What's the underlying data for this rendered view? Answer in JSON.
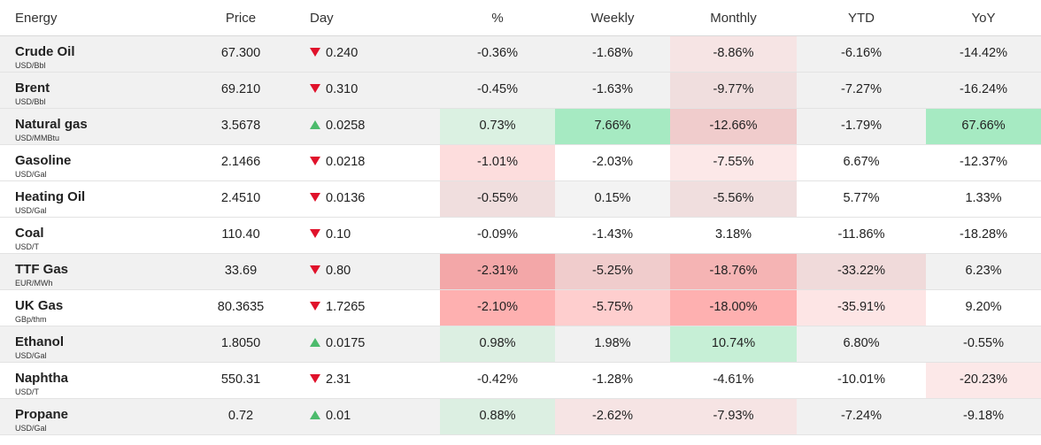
{
  "headers": {
    "name": "Energy",
    "price": "Price",
    "day": "Day",
    "pct": "%",
    "weekly": "Weekly",
    "monthly": "Monthly",
    "ytd": "YTD",
    "yoy": "YoY"
  },
  "colors": {
    "up_arrow": "#4cbb6c",
    "down_arrow": "#e0122b"
  },
  "rows": [
    {
      "name": "Crude Oil",
      "unit": "USD/Bbl",
      "price": "67.300",
      "dir": "down",
      "day": "0.240",
      "pct": "-0.36%",
      "weekly": "-1.68%",
      "monthly": "-8.86%",
      "ytd": "-6.16%",
      "yoy": "-14.42%"
    },
    {
      "name": "Brent",
      "unit": "USD/Bbl",
      "price": "69.210",
      "dir": "down",
      "day": "0.310",
      "pct": "-0.45%",
      "weekly": "-1.63%",
      "monthly": "-9.77%",
      "ytd": "-7.27%",
      "yoy": "-16.24%"
    },
    {
      "name": "Natural gas",
      "unit": "USD/MMBtu",
      "price": "3.5678",
      "dir": "up",
      "day": "0.0258",
      "pct": "0.73%",
      "weekly": "7.66%",
      "monthly": "-12.66%",
      "ytd": "-1.79%",
      "yoy": "67.66%"
    },
    {
      "name": "Gasoline",
      "unit": "USD/Gal",
      "price": "2.1466",
      "dir": "down",
      "day": "0.0218",
      "pct": "-1.01%",
      "weekly": "-2.03%",
      "monthly": "-7.55%",
      "ytd": "6.67%",
      "yoy": "-12.37%"
    },
    {
      "name": "Heating Oil",
      "unit": "USD/Gal",
      "price": "2.4510",
      "dir": "down",
      "day": "0.0136",
      "pct": "-0.55%",
      "weekly": "0.15%",
      "monthly": "-5.56%",
      "ytd": "5.77%",
      "yoy": "1.33%"
    },
    {
      "name": "Coal",
      "unit": "USD/T",
      "price": "110.40",
      "dir": "down",
      "day": "0.10",
      "pct": "-0.09%",
      "weekly": "-1.43%",
      "monthly": "3.18%",
      "ytd": "-11.86%",
      "yoy": "-18.28%"
    },
    {
      "name": "TTF Gas",
      "unit": "EUR/MWh",
      "price": "33.69",
      "dir": "down",
      "day": "0.80",
      "pct": "-2.31%",
      "weekly": "-5.25%",
      "monthly": "-18.76%",
      "ytd": "-33.22%",
      "yoy": "6.23%"
    },
    {
      "name": "UK Gas",
      "unit": "GBp/thm",
      "price": "80.3635",
      "dir": "down",
      "day": "1.7265",
      "pct": "-2.10%",
      "weekly": "-5.75%",
      "monthly": "-18.00%",
      "ytd": "-35.91%",
      "yoy": "9.20%"
    },
    {
      "name": "Ethanol",
      "unit": "USD/Gal",
      "price": "1.8050",
      "dir": "up",
      "day": "0.0175",
      "pct": "0.98%",
      "weekly": "1.98%",
      "monthly": "10.74%",
      "ytd": "6.80%",
      "yoy": "-0.55%"
    },
    {
      "name": "Naphtha",
      "unit": "USD/T",
      "price": "550.31",
      "dir": "down",
      "day": "2.31",
      "pct": "-0.42%",
      "weekly": "-1.28%",
      "monthly": "-4.61%",
      "ytd": "-10.01%",
      "yoy": "-20.23%"
    },
    {
      "name": "Propane",
      "unit": "USD/Gal",
      "price": "0.72",
      "dir": "up",
      "day": "0.01",
      "pct": "0.88%",
      "weekly": "-2.62%",
      "monthly": "-7.93%",
      "ytd": "-7.24%",
      "yoy": "-9.18%"
    }
  ]
}
